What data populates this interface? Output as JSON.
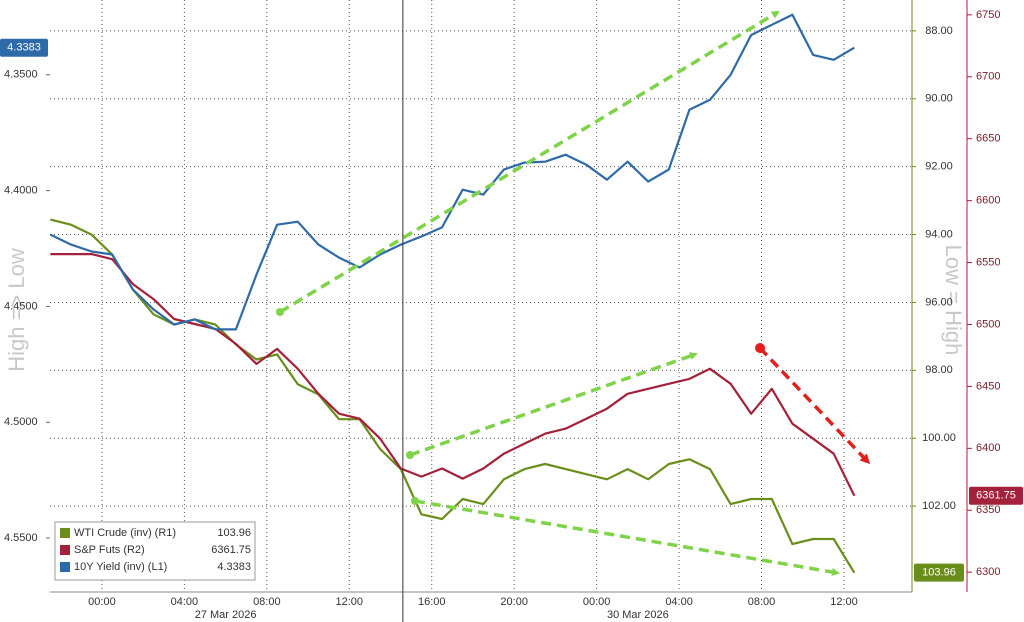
{
  "chart_data": {
    "type": "line",
    "y_title": "High => Low",
    "y2_title": "Low = High",
    "x": [
      -2.5,
      -1.5,
      -0.5,
      0.5,
      1.5,
      2.5,
      3.5,
      4.5,
      5.5,
      6.5,
      7.5,
      8.5,
      9.5,
      10.5,
      11.5,
      12.5,
      13.5,
      14.5,
      15.5,
      16.5,
      17.5,
      18.5,
      19.5,
      20.5,
      21.5,
      22.5,
      23.5,
      24.5,
      25.5,
      26.5,
      27.5,
      28.5,
      29.5,
      30.5,
      31.5,
      32.5,
      33.5,
      34.5,
      35.5,
      36.5
    ],
    "xlim": [
      -2.52,
      39.3
    ],
    "xticks": [
      {
        "value": 0,
        "label": "00:00"
      },
      {
        "value": 4,
        "label": "04:00"
      },
      {
        "value": 8,
        "label": "08:00"
      },
      {
        "value": 12,
        "label": "12:00"
      },
      {
        "value": 16,
        "label": "16:00"
      },
      {
        "value": 20,
        "label": "20:00"
      },
      {
        "value": 24,
        "label": "00:00"
      },
      {
        "value": 28,
        "label": "04:00"
      },
      {
        "value": 32,
        "label": "08:00"
      },
      {
        "value": 36,
        "label": "12:00"
      }
    ],
    "xdate_ticks": [
      {
        "value": 6,
        "label": "27 Mar 2026"
      },
      {
        "value": 26,
        "label": "30 Mar 2026"
      }
    ],
    "x_break": 14.6,
    "ylim": [
      4.5733,
      4.3177
    ],
    "yticks": [
      {
        "value": 4.35,
        "label": "4.3500"
      },
      {
        "value": 4.4,
        "label": "4.4000"
      },
      {
        "value": 4.45,
        "label": "4.4500"
      },
      {
        "value": 4.5,
        "label": "4.5000"
      },
      {
        "value": 4.55,
        "label": "4.5500"
      }
    ],
    "y2lim": [
      104.53,
      87.09
    ],
    "y2ticks": [
      {
        "value": 88,
        "label": "88.00"
      },
      {
        "value": 90,
        "label": "90.00"
      },
      {
        "value": 92,
        "label": "92.00"
      },
      {
        "value": 94,
        "label": "94.00"
      },
      {
        "value": 96,
        "label": "96.00"
      },
      {
        "value": 98,
        "label": "98.00"
      },
      {
        "value": 100,
        "label": "100.00"
      },
      {
        "value": 102,
        "label": "102.00"
      }
    ],
    "y3lim": [
      6284,
      6762
    ],
    "y3ticks": [
      6300,
      6350,
      6400,
      6450,
      6500,
      6550,
      6600,
      6650,
      6700,
      6750
    ],
    "grid": true,
    "legend": "bottom-left",
    "series": [
      {
        "name": "WTI Crude (inv) (R1)",
        "color": "#6a8e1a",
        "axis": "y2",
        "values": [
          93.56,
          93.71,
          94.0,
          94.59,
          95.62,
          96.35,
          96.65,
          96.5,
          96.65,
          97.24,
          97.68,
          97.53,
          98.41,
          98.71,
          99.44,
          99.44,
          100.32,
          100.91,
          102.24,
          102.38,
          101.79,
          101.94,
          101.21,
          100.91,
          100.76,
          100.91,
          101.06,
          101.21,
          100.91,
          101.21,
          100.76,
          100.62,
          100.91,
          101.94,
          101.79,
          101.79,
          103.12,
          102.97,
          102.97,
          103.96
        ]
      },
      {
        "name": "S&P Futs (R2)",
        "color": "#a3213a",
        "axis": "y3",
        "values": [
          6556.8,
          6556.8,
          6556.8,
          6552.7,
          6532.6,
          6520.5,
          6504.4,
          6500.4,
          6496.4,
          6484.3,
          6468.2,
          6480.3,
          6464.2,
          6444.0,
          6428.0,
          6423.9,
          6407.8,
          6383.7,
          6377.2,
          6383.7,
          6375.6,
          6383.7,
          6395.7,
          6403.8,
          6411.8,
          6415.9,
          6423.9,
          6432.0,
          6444.0,
          6448.1,
          6452.1,
          6456.1,
          6464.2,
          6452.1,
          6428.0,
          6448.1,
          6419.9,
          6407.8,
          6395.7,
          6361.75
        ]
      },
      {
        "name": "10Y Yield (inv) (L1)",
        "color": "#2f6aa8",
        "axis": "y",
        "values": [
          4.419,
          4.4233,
          4.4263,
          4.4276,
          4.4427,
          4.4513,
          4.4578,
          4.4556,
          4.4599,
          4.4599,
          4.4362,
          4.4147,
          4.4134,
          4.4233,
          4.4289,
          4.4332,
          4.4276,
          4.4233,
          4.4198,
          4.4159,
          4.3996,
          4.4017,
          4.3909,
          4.3879,
          4.3875,
          4.3845,
          4.3888,
          4.3953,
          4.3875,
          4.3961,
          4.3909,
          4.3651,
          4.3608,
          4.35,
          4.3328,
          4.3284,
          4.3241,
          4.3414,
          4.3435,
          4.3383
        ]
      }
    ]
  }
}
